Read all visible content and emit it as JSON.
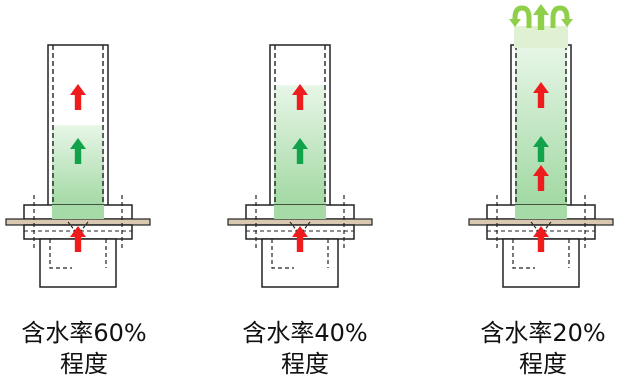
{
  "figure": {
    "colors": {
      "outline": "#222222",
      "moisture_green_light": "#dff3df",
      "moisture_green_dark": "#9fd9a2",
      "board": "#d9c9b2",
      "arrow_red": "#ee1c1c",
      "arrow_green": "#12a24a",
      "vapor_green": "#8fcf4a"
    },
    "columns": [
      {
        "fill_fraction": 0.52,
        "red_arrows": 2,
        "green_arrows": 1,
        "vapor": false,
        "caption_line1": "含水率60%",
        "caption_line2": "程度"
      },
      {
        "fill_fraction": 0.76,
        "red_arrows": 2,
        "green_arrows": 1,
        "vapor": false,
        "caption_line1": "含水率40%",
        "caption_line2": "程度"
      },
      {
        "fill_fraction": 1.0,
        "red_arrows": 3,
        "green_arrows": 1,
        "vapor": true,
        "caption_line1": "含水率20%",
        "caption_line2": "程度"
      }
    ],
    "icons": {
      "up_arrow": "up-arrow-icon",
      "vapor": "curved-arrow-icon"
    }
  }
}
